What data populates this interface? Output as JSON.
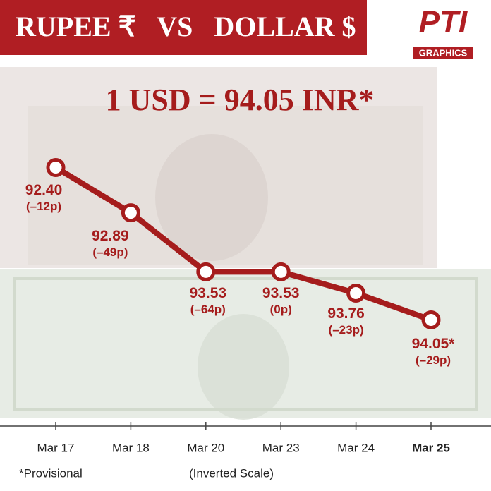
{
  "header": {
    "title": "RUPEE ₹   VS   DOLLAR $",
    "logo": "PTI",
    "logo_sub": "GRAPHICS"
  },
  "chart_data": {
    "type": "line",
    "title": "1 USD = 94.05 INR*",
    "categories": [
      "Mar 17",
      "Mar 18",
      "Mar 20",
      "Mar 23",
      "Mar 24",
      "Mar 25"
    ],
    "values": [
      92.4,
      92.89,
      93.53,
      93.53,
      93.76,
      94.05
    ],
    "value_labels": [
      "92.40",
      "92.89",
      "93.53",
      "93.53",
      "93.76",
      "94.05*"
    ],
    "annotations": [
      "(–12p)",
      "(–49p)",
      "(–64p)",
      "(0p)",
      "(–23p)",
      "(–29p)"
    ],
    "color": "#a51c1c",
    "ylim": [
      91.35,
      95.2
    ],
    "inverted": true,
    "notes": [
      "*Provisional",
      "(Inverted Scale)"
    ]
  }
}
